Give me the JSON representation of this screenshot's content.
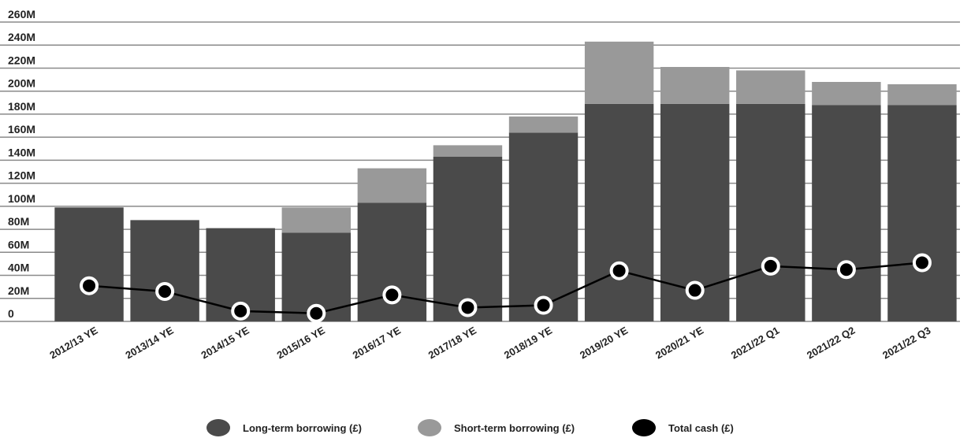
{
  "chart_data": {
    "type": "bar",
    "stacked": true,
    "title": "",
    "xlabel": "",
    "ylabel": "",
    "ylim": [
      0,
      260
    ],
    "y_tick_values": [
      0,
      20,
      40,
      60,
      80,
      100,
      120,
      140,
      160,
      180,
      200,
      220,
      240,
      260
    ],
    "y_tick_labels": [
      "0",
      "20M",
      "40M",
      "60M",
      "80M",
      "100M",
      "120M",
      "140M",
      "160M",
      "180M",
      "200M",
      "220M",
      "240M",
      "260M"
    ],
    "grid": true,
    "legend_position": "bottom",
    "categories": [
      "2012/13 YE",
      "2013/14 YE",
      "2014/15 YE",
      "2015/16 YE",
      "2016/17 YE",
      "2017/18 YE",
      "2018/19 YE",
      "2019/20 YE",
      "2020/21 YE",
      "2021/22 Q1",
      "2021/22 Q2",
      "2021/22 Q3"
    ],
    "series": [
      {
        "name": "Long-term borrowing (£)",
        "type": "bar",
        "color": "#4a4a4a",
        "values": [
          99,
          88,
          81,
          77,
          103,
          143,
          164,
          189,
          189,
          189,
          188,
          188
        ]
      },
      {
        "name": "Short-term borrowing (£)",
        "type": "bar",
        "color": "#999999",
        "values": [
          0,
          0,
          0,
          22,
          30,
          10,
          14,
          54,
          32,
          29,
          20,
          18
        ]
      },
      {
        "name": "Total cash (£)",
        "type": "line",
        "color": "#000000",
        "values": [
          31,
          26,
          9,
          7,
          23,
          12,
          14,
          44,
          27,
          48,
          45,
          51
        ]
      }
    ]
  }
}
